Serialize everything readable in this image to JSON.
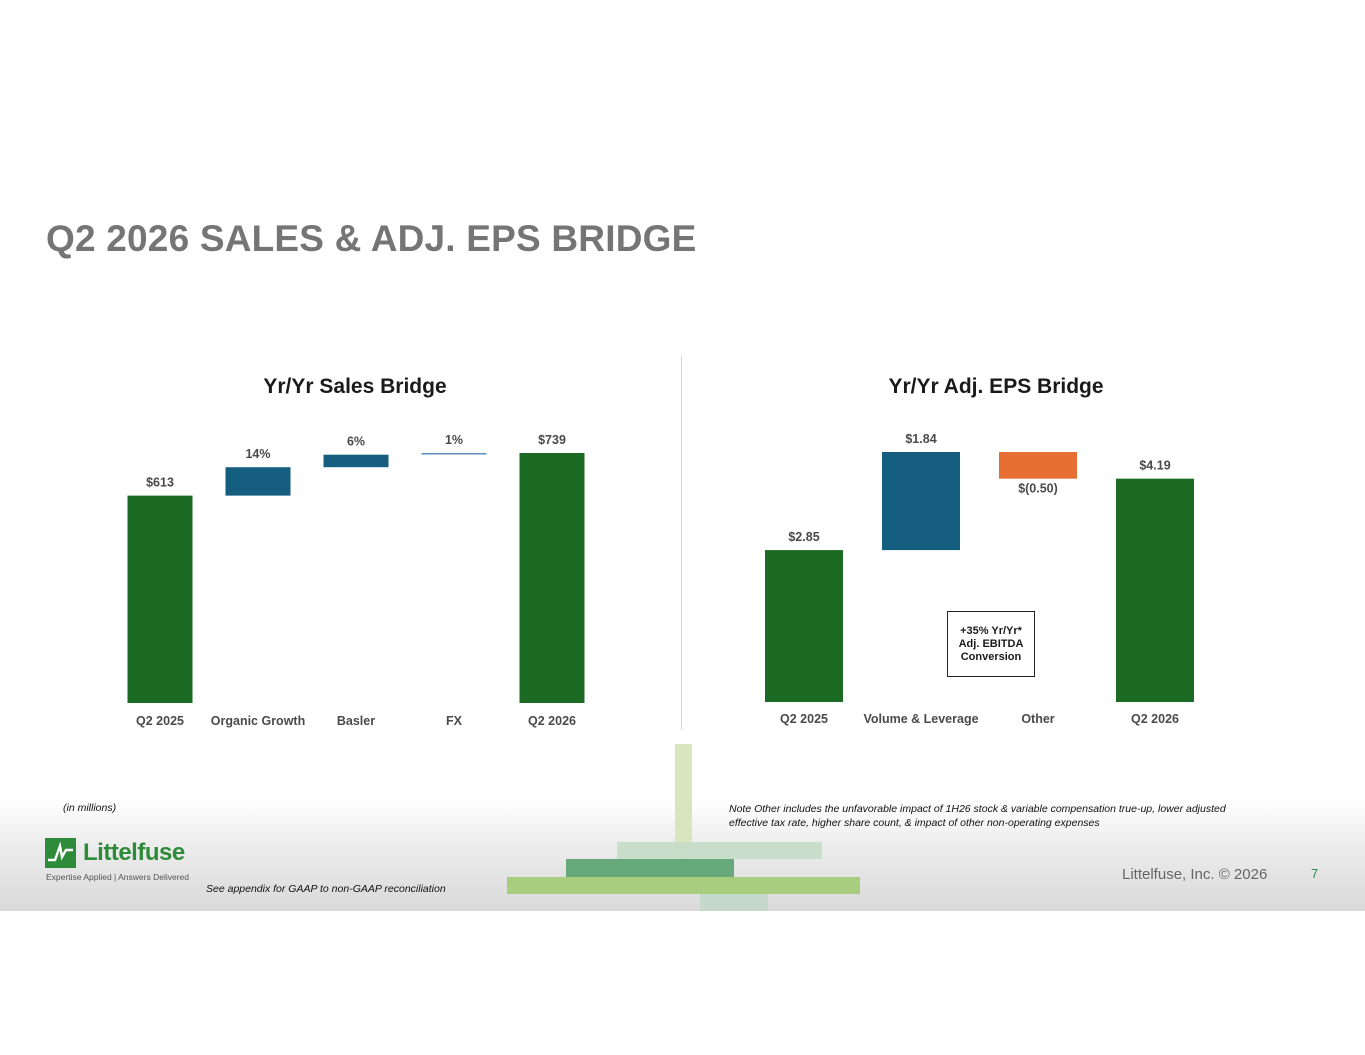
{
  "title": "Q2 2026 SALES & ADJ. EPS BRIDGE",
  "colors": {
    "title_gray": "#757575",
    "green": "#1b6b24",
    "blue": "#165e80",
    "orange": "#e86f33",
    "logo_green": "#2e8b3a"
  },
  "chart_data": [
    {
      "type": "bar",
      "subtype": "waterfall",
      "title": "Yr/Yr Sales Bridge",
      "categories": [
        "Q2 2025",
        "Organic Growth",
        "Basler",
        "FX",
        "Q2 2026"
      ],
      "labels": [
        "$613",
        "14%",
        "6%",
        "1%",
        "$739"
      ],
      "values": [
        613,
        84,
        37,
        5,
        739
      ],
      "unit": "$ millions",
      "kinds": [
        "total",
        "increase",
        "increase",
        "increase",
        "total"
      ]
    },
    {
      "type": "bar",
      "subtype": "waterfall",
      "title": "Yr/Yr Adj. EPS Bridge",
      "categories": [
        "Q2 2025",
        "Volume & Leverage",
        "Other",
        "Q2 2026"
      ],
      "labels": [
        "$2.85",
        "$1.84",
        "$(0.50)",
        "$4.19"
      ],
      "values": [
        2.85,
        1.84,
        -0.5,
        4.19
      ],
      "kinds": [
        "total",
        "increase",
        "decrease",
        "total"
      ],
      "annotation": "+35% Yr/Yr*\nAdj. EBITDA\nConversion"
    }
  ],
  "notes": {
    "units": "(in millions)",
    "other_note": "Note Other includes the unfavorable impact of 1H26 stock & variable compensation true-up, lower adjusted effective tax rate, higher share count, & impact of other non-operating expenses",
    "appendix": "See appendix for GAAP to non-GAAP reconciliation"
  },
  "footer": {
    "company": "Littelfuse",
    "tagline": "Expertise Applied | Answers Delivered",
    "copyright": "Littelfuse, Inc. © 2026",
    "page_number": "7"
  }
}
